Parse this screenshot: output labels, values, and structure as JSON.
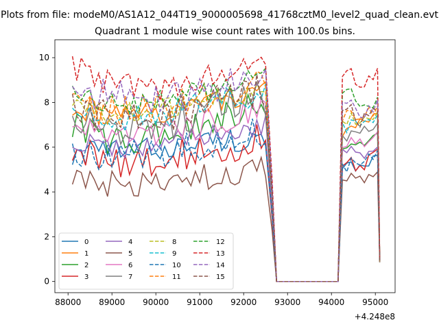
{
  "chart_data": {
    "type": "line",
    "suptitle": "Plots from file: modeM0/AS1A12_044T19_9000005698_41768cztM0_level2_quad_clean.evt",
    "title": "Quadrant 1 module wise count rates with 100.0s bins.",
    "xlabel": "",
    "ylabel": "",
    "offset_label": "+4.248e8",
    "xlim": [
      87700,
      95450
    ],
    "ylim": [
      -0.5,
      10.8
    ],
    "xticks": [
      88000,
      89000,
      90000,
      91000,
      92000,
      93000,
      94000,
      95000
    ],
    "yticks": [
      0,
      2,
      4,
      6,
      8,
      10
    ],
    "legend": {
      "position": "lower-left",
      "columns": 4
    },
    "series": [
      {
        "name": "0",
        "color": "#1f77b4",
        "dash": "solid",
        "profile": [
          5.7,
          5.8,
          5.9,
          6.1,
          6.4,
          6.2
        ],
        "after": [
          5.0,
          4.9,
          5.3
        ]
      },
      {
        "name": "1",
        "color": "#ff7f0e",
        "dash": "solid",
        "profile": [
          7.9,
          7.3,
          7.5,
          7.8,
          8.3,
          8.6
        ],
        "after": [
          6.6,
          7.0,
          7.2
        ]
      },
      {
        "name": "2",
        "color": "#2ca02c",
        "dash": "solid",
        "profile": [
          6.9,
          6.3,
          6.4,
          6.8,
          7.5,
          8.0
        ],
        "after": [
          5.8,
          6.0,
          6.3
        ]
      },
      {
        "name": "3",
        "color": "#d62728",
        "dash": "solid",
        "profile": [
          5.8,
          5.4,
          5.4,
          5.7,
          6.0,
          6.3
        ],
        "after": [
          5.2,
          5.0,
          5.6
        ]
      },
      {
        "name": "4",
        "color": "#9467bd",
        "dash": "solid",
        "profile": [
          6.2,
          6.0,
          6.0,
          6.3,
          6.8,
          7.0
        ],
        "after": [
          5.7,
          5.6,
          5.7
        ]
      },
      {
        "name": "5",
        "color": "#8c564b",
        "dash": "solid",
        "profile": [
          4.5,
          4.3,
          4.2,
          4.5,
          4.8,
          5.0
        ],
        "after": [
          4.5,
          4.6,
          4.6
        ]
      },
      {
        "name": "6",
        "color": "#e377c2",
        "dash": "solid",
        "profile": [
          7.0,
          6.3,
          6.4,
          6.8,
          7.4,
          7.8
        ],
        "after": [
          6.1,
          6.3,
          6.4
        ]
      },
      {
        "name": "7",
        "color": "#7f7f7f",
        "dash": "solid",
        "profile": [
          7.4,
          6.8,
          6.9,
          7.3,
          7.9,
          8.2
        ],
        "after": [
          6.4,
          6.6,
          6.8
        ]
      },
      {
        "name": "8",
        "color": "#bcbd22",
        "dash": "dashed",
        "profile": [
          7.8,
          7.4,
          7.5,
          7.9,
          8.3,
          8.6
        ],
        "after": [
          7.2,
          7.1,
          7.3
        ]
      },
      {
        "name": "9",
        "color": "#17becf",
        "dash": "dashed",
        "profile": [
          7.6,
          7.1,
          7.3,
          7.7,
          8.2,
          8.5
        ],
        "after": [
          6.9,
          7.0,
          7.2
        ]
      },
      {
        "name": "10",
        "color": "#1f77b4",
        "dash": "dashed",
        "profile": [
          5.9,
          5.6,
          5.6,
          6.0,
          6.4,
          6.7
        ],
        "after": [
          5.2,
          5.3,
          5.6
        ]
      },
      {
        "name": "11",
        "color": "#ff7f0e",
        "dash": "dashed",
        "profile": [
          8.0,
          7.5,
          7.6,
          7.9,
          8.4,
          8.7
        ],
        "after": [
          7.3,
          7.4,
          7.6
        ]
      },
      {
        "name": "12",
        "color": "#2ca02c",
        "dash": "dashed",
        "profile": [
          8.4,
          8.0,
          8.0,
          8.3,
          8.8,
          9.1
        ],
        "after": [
          8.3,
          8.0,
          8.0
        ]
      },
      {
        "name": "13",
        "color": "#d62728",
        "dash": "dashed",
        "profile": [
          9.6,
          8.9,
          8.7,
          8.8,
          9.6,
          10.0
        ],
        "after": [
          9.2,
          8.9,
          9.3
        ]
      },
      {
        "name": "14",
        "color": "#9467bd",
        "dash": "dashed",
        "profile": [
          8.1,
          8.5,
          8.2,
          8.3,
          8.8,
          9.3
        ],
        "after": [
          7.8,
          7.6,
          7.9
        ]
      },
      {
        "name": "15",
        "color": "#8c564b",
        "dash": "dashed",
        "profile": [
          7.6,
          7.5,
          7.4,
          7.6,
          8.2,
          8.6
        ],
        "after": [
          7.6,
          7.2,
          7.4
        ]
      }
    ],
    "time_grid": {
      "first_segment_start": 88100,
      "step": 100,
      "first_segment_points": 45,
      "gap_points": [
        92650,
        92750,
        92850,
        92950,
        93050,
        93150,
        93250,
        93350,
        93450,
        93550,
        93650,
        93750,
        93850,
        93950,
        94050,
        94150
      ],
      "gap_values": [
        4.0,
        0,
        0,
        0,
        0,
        0,
        0,
        0,
        0,
        0,
        0,
        0,
        0,
        0,
        0,
        0
      ],
      "second_segment_start": 94250,
      "second_segment_points": 9,
      "end_x": 95100,
      "end_value": 1.0
    }
  }
}
